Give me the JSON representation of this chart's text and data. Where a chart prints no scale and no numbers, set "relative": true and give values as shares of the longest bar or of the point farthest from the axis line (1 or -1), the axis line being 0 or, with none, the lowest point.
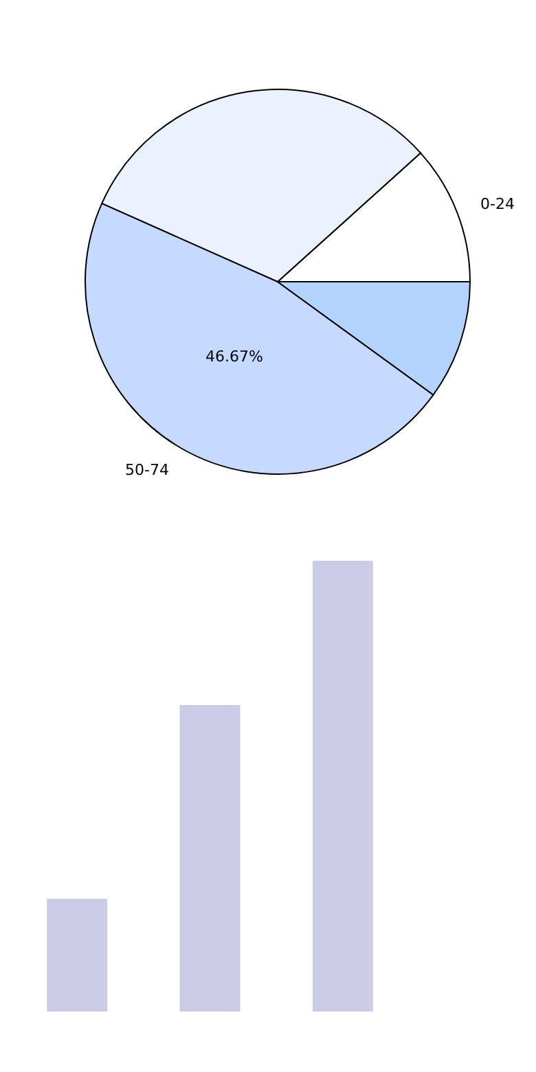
{
  "chart_data": [
    {
      "type": "pie",
      "categories": [
        "0-24",
        null,
        "50-74",
        null
      ],
      "values": [
        11.67,
        31.67,
        46.67,
        10
      ],
      "colors": [
        "#ffffff",
        "#eaf2ff",
        "#c6d9ff",
        "#b3d4ff"
      ],
      "value_labels": [
        null,
        null,
        "46.67%",
        null
      ]
    },
    {
      "type": "bar",
      "categories": [
        null,
        null,
        null
      ],
      "values": [
        0.25,
        0.68,
        1
      ],
      "color": "#ccccE6",
      "relative": true
    }
  ]
}
